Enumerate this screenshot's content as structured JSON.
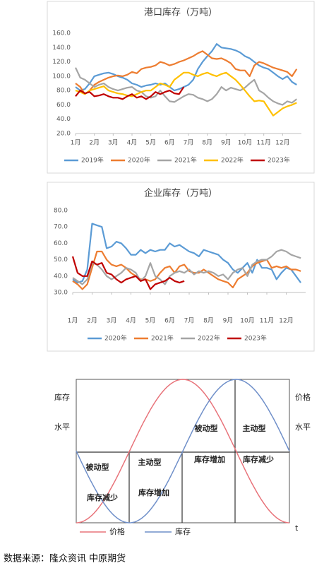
{
  "chart_data": [
    {
      "type": "line",
      "title": "港口库存（万吨）",
      "x": [
        1,
        1.25,
        1.5,
        1.75,
        2,
        2.25,
        2.5,
        2.75,
        3,
        3.25,
        3.5,
        3.75,
        4,
        4.25,
        4.5,
        4.75,
        5,
        5.25,
        5.5,
        5.75,
        6,
        6.25,
        6.5,
        6.75,
        7,
        7.25,
        7.5,
        7.75,
        8,
        8.25,
        8.5,
        8.75,
        9,
        9.25,
        9.5,
        9.75,
        10,
        10.25,
        10.5,
        10.75,
        11,
        11.25,
        11.5,
        11.75,
        12,
        12.25,
        12.5,
        12.75
      ],
      "xlim": [
        1,
        13
      ],
      "xticks": [
        {
          "value": 1,
          "label": "1月"
        },
        {
          "value": 2,
          "label": "2月"
        },
        {
          "value": 3,
          "label": "3月"
        },
        {
          "value": 4,
          "label": "4月"
        },
        {
          "value": 5,
          "label": "5月"
        },
        {
          "value": 6,
          "label": "6月"
        },
        {
          "value": 7,
          "label": "7月"
        },
        {
          "value": 8,
          "label": "8月"
        },
        {
          "value": 9,
          "label": "9月"
        },
        {
          "value": 10,
          "label": "10月"
        },
        {
          "value": 11,
          "label": "11月"
        },
        {
          "value": 12,
          "label": "12月"
        }
      ],
      "ylim": [
        20,
        160
      ],
      "yticks": [
        {
          "value": 20,
          "label": "20.0"
        },
        {
          "value": 40,
          "label": "40.0"
        },
        {
          "value": 60,
          "label": "60.0"
        },
        {
          "value": 80,
          "label": "80.0"
        },
        {
          "value": 100,
          "label": "100.0"
        },
        {
          "value": 120,
          "label": "120.0"
        },
        {
          "value": 140,
          "label": "140.0"
        },
        {
          "value": 160,
          "label": "160.0"
        }
      ],
      "series": [
        {
          "name": "2019年",
          "color": "#5b9bd5",
          "values": [
            85,
            80,
            82,
            90,
            100,
            102,
            104,
            105,
            103,
            100,
            98,
            95,
            90,
            88,
            85,
            87,
            88,
            90,
            88,
            90,
            85,
            80,
            82,
            85,
            88,
            95,
            110,
            120,
            128,
            135,
            145,
            140,
            139,
            138,
            136,
            133,
            128,
            125,
            120,
            115,
            112,
            110,
            105,
            100,
            96,
            100,
            92,
            88
          ]
        },
        {
          "name": "2020年",
          "color": "#ed7d31",
          "values": [
            90,
            85,
            75,
            80,
            88,
            92,
            95,
            98,
            100,
            101,
            100,
            102,
            106,
            104,
            110,
            112,
            113,
            115,
            120,
            118,
            115,
            117,
            120,
            122,
            125,
            128,
            132,
            135,
            130,
            125,
            124,
            125,
            122,
            118,
            110,
            108,
            108,
            100,
            115,
            120,
            118,
            115,
            112,
            110,
            108,
            106,
            100,
            110
          ]
        },
        {
          "name": "2021年",
          "color": "#a5a5a5",
          "values": [
            112,
            98,
            95,
            90,
            85,
            88,
            90,
            85,
            82,
            80,
            82,
            84,
            85,
            80,
            78,
            72,
            70,
            72,
            80,
            72,
            65,
            64,
            68,
            72,
            75,
            74,
            70,
            68,
            65,
            68,
            75,
            85,
            80,
            84,
            82,
            80,
            84,
            90,
            95,
            80,
            76,
            70,
            65,
            62,
            60,
            65,
            63,
            68
          ]
        },
        {
          "name": "2022年",
          "color": "#ffc000",
          "values": [
            80,
            78,
            75,
            80,
            82,
            84,
            86,
            80,
            78,
            76,
            75,
            73,
            72,
            75,
            78,
            80,
            80,
            85,
            90,
            88,
            85,
            95,
            100,
            105,
            105,
            102,
            100,
            103,
            105,
            102,
            100,
            103,
            105,
            100,
            95,
            88,
            80,
            72,
            65,
            66,
            65,
            55,
            45,
            50,
            55,
            58,
            60,
            63
          ]
        },
        {
          "name": "2023年",
          "color": "#c00000",
          "values": [
            72,
            80,
            76,
            78,
            72,
            73,
            75,
            72,
            70,
            70,
            68,
            72,
            75,
            70,
            72,
            68,
            72,
            78,
            75,
            78,
            80,
            76,
            75,
            85,
            null,
            null,
            null,
            null,
            null,
            null,
            null,
            null,
            null,
            null,
            null,
            null,
            null,
            null,
            null,
            null,
            null,
            null,
            null,
            null,
            null,
            null,
            null,
            null
          ]
        }
      ]
    },
    {
      "type": "line",
      "title": "企业库存（万吨）",
      "x": [
        1,
        1.25,
        1.5,
        1.75,
        2,
        2.25,
        2.5,
        2.75,
        3,
        3.25,
        3.5,
        3.75,
        4,
        4.25,
        4.5,
        4.75,
        5,
        5.25,
        5.5,
        5.75,
        6,
        6.25,
        6.5,
        6.75,
        7,
        7.25,
        7.5,
        7.75,
        8,
        8.25,
        8.5,
        8.75,
        9,
        9.25,
        9.5,
        9.75,
        10,
        10.25,
        10.5,
        10.75,
        11,
        11.25,
        11.5,
        11.75,
        12,
        12.25,
        12.5,
        12.75
      ],
      "xlim": [
        1,
        13
      ],
      "xticks": [
        {
          "value": 1,
          "label": "1月"
        },
        {
          "value": 2,
          "label": "2月"
        },
        {
          "value": 3,
          "label": "3月"
        },
        {
          "value": 4,
          "label": "4月"
        },
        {
          "value": 5,
          "label": "5月"
        },
        {
          "value": 6,
          "label": "6月"
        },
        {
          "value": 7,
          "label": "7月"
        },
        {
          "value": 8,
          "label": "8月"
        },
        {
          "value": 9,
          "label": "9月"
        },
        {
          "value": 10,
          "label": "10月"
        },
        {
          "value": 11,
          "label": "11月"
        },
        {
          "value": 12,
          "label": "12月"
        }
      ],
      "ylim": [
        30,
        80
      ],
      "yticks": [
        {
          "value": 30,
          "label": "30.0"
        },
        {
          "value": 40,
          "label": "40.0"
        },
        {
          "value": 50,
          "label": "50.0"
        },
        {
          "value": 60,
          "label": "60.0"
        },
        {
          "value": 70,
          "label": "70.0"
        },
        {
          "value": 80,
          "label": "80.0"
        }
      ],
      "series": [
        {
          "name": "2020年",
          "color": "#5b9bd5",
          "values": [
            38,
            36,
            37,
            44,
            72,
            71,
            70,
            57,
            58,
            61,
            60,
            57,
            53,
            53,
            56,
            54,
            56,
            55,
            56,
            56,
            60,
            58,
            59,
            57,
            55,
            54,
            52,
            56,
            55,
            54,
            53,
            50,
            48,
            44,
            42,
            45,
            48,
            42,
            50,
            45,
            45,
            44,
            38,
            42,
            45,
            44,
            40,
            36
          ]
        },
        {
          "name": "2021年",
          "color": "#ed7d31",
          "values": [
            37,
            35,
            32,
            35,
            45,
            55,
            55,
            50,
            47,
            46,
            47,
            45,
            42,
            40,
            38,
            38,
            37,
            38,
            42,
            45,
            46,
            42,
            46,
            47,
            43,
            42,
            42,
            44,
            42,
            40,
            38,
            37,
            36,
            33,
            38,
            40,
            42,
            46,
            48,
            49,
            50,
            45,
            46,
            45,
            46,
            44,
            44,
            43
          ]
        },
        {
          "name": "2022年",
          "color": "#a5a5a5",
          "values": [
            39,
            37,
            35,
            38,
            48,
            47,
            44,
            40,
            38,
            40,
            42,
            45,
            44,
            42,
            37,
            40,
            48,
            40,
            38,
            35,
            40,
            42,
            43,
            42,
            44,
            41,
            43,
            42,
            43,
            42,
            40,
            41,
            38,
            42,
            44,
            45,
            40,
            47,
            49,
            50,
            50,
            52,
            55,
            56,
            55,
            53,
            52,
            51
          ]
        },
        {
          "name": "2023年",
          "color": "#c00000",
          "values": [
            52,
            42,
            40,
            40,
            49,
            47,
            48,
            42,
            41,
            38,
            36,
            38,
            39,
            40,
            37,
            38,
            32,
            35,
            36,
            37,
            39,
            37,
            36,
            37,
            null,
            null,
            null,
            null,
            null,
            null,
            null,
            null,
            null,
            null,
            null,
            null,
            null,
            null,
            null,
            null,
            null,
            null,
            null,
            null,
            null,
            null,
            null,
            null
          ]
        }
      ]
    }
  ],
  "diagram": {
    "y_left": [
      "库存",
      "水平"
    ],
    "y_right": [
      "价格",
      "水平"
    ],
    "quadrants": [
      [
        "被动型",
        "库存减少"
      ],
      [
        "主动型",
        "库存增加"
      ],
      [
        "被动型",
        "库存增加"
      ],
      [
        "主动型",
        "库存减少"
      ]
    ],
    "legend": [
      "价格",
      "库存"
    ],
    "x_label": "t"
  },
  "source": "数据来源：隆众资讯 中原期货"
}
